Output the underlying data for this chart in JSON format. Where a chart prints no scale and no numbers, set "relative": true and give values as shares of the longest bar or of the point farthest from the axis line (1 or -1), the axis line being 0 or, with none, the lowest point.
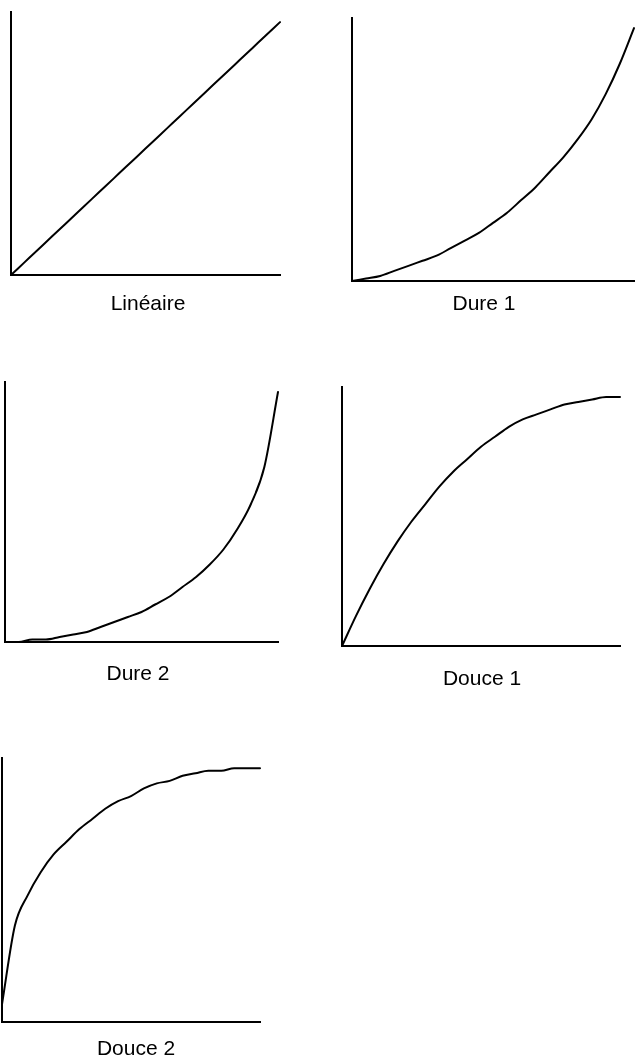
{
  "chart_data": [
    {
      "type": "line",
      "title": "Linéaire",
      "relative": true,
      "categories": [
        null,
        null,
        null,
        null,
        null,
        null,
        null,
        null,
        null,
        null,
        null,
        null,
        null,
        null,
        null,
        null,
        null,
        null,
        null,
        null,
        null
      ],
      "series": [
        {
          "color": "#000000",
          "values": [
            0,
            0.05,
            0.1,
            0.15,
            0.2,
            0.25,
            0.3,
            0.35,
            0.4,
            0.45,
            0.5,
            0.55,
            0.6,
            0.65,
            0.7,
            0.75,
            0.8,
            0.85,
            0.9,
            0.95,
            1
          ]
        }
      ]
    },
    {
      "type": "line",
      "title": "Dure 1",
      "relative": true,
      "categories": [
        null,
        null,
        null,
        null,
        null,
        null,
        null,
        null,
        null,
        null,
        null,
        null,
        null,
        null,
        null,
        null,
        null,
        null,
        null,
        null,
        null
      ],
      "series": [
        {
          "color": "#000000",
          "values": [
            0,
            0.01,
            0.02,
            0.04,
            0.06,
            0.08,
            0.1,
            0.13,
            0.16,
            0.19,
            0.23,
            0.27,
            0.32,
            0.37,
            0.43,
            0.49,
            0.56,
            0.64,
            0.74,
            0.86,
            1
          ]
        }
      ]
    },
    {
      "type": "line",
      "title": "Dure 2",
      "relative": true,
      "categories": [
        null,
        null,
        null,
        null,
        null,
        null,
        null,
        null,
        null,
        null,
        null,
        null,
        null,
        null,
        null,
        null,
        null,
        null,
        null,
        null,
        null
      ],
      "series": [
        {
          "color": "#000000",
          "values": [
            0,
            0,
            0.01,
            0.01,
            0.02,
            0.03,
            0.04,
            0.06,
            0.08,
            0.1,
            0.12,
            0.15,
            0.18,
            0.22,
            0.26,
            0.31,
            0.37,
            0.45,
            0.55,
            0.7,
            1
          ]
        }
      ]
    },
    {
      "type": "line",
      "title": "Douce 1",
      "relative": true,
      "categories": [
        null,
        null,
        null,
        null,
        null,
        null,
        null,
        null,
        null,
        null,
        null,
        null,
        null,
        null,
        null,
        null,
        null,
        null,
        null,
        null,
        null
      ],
      "series": [
        {
          "color": "#000000",
          "values": [
            0,
            0.12,
            0.23,
            0.33,
            0.42,
            0.5,
            0.57,
            0.64,
            0.7,
            0.75,
            0.8,
            0.84,
            0.88,
            0.91,
            0.93,
            0.95,
            0.97,
            0.98,
            0.99,
            1,
            1
          ]
        }
      ]
    },
    {
      "type": "line",
      "title": "Douce 2",
      "relative": true,
      "categories": [
        null,
        null,
        null,
        null,
        null,
        null,
        null,
        null,
        null,
        null,
        null,
        null,
        null,
        null,
        null,
        null,
        null,
        null,
        null,
        null,
        null
      ],
      "series": [
        {
          "color": "#000000",
          "values": [
            0.07,
            0.38,
            0.5,
            0.59,
            0.66,
            0.71,
            0.76,
            0.8,
            0.84,
            0.87,
            0.89,
            0.92,
            0.94,
            0.95,
            0.97,
            0.98,
            0.99,
            0.99,
            1,
            1,
            1
          ]
        }
      ]
    }
  ]
}
